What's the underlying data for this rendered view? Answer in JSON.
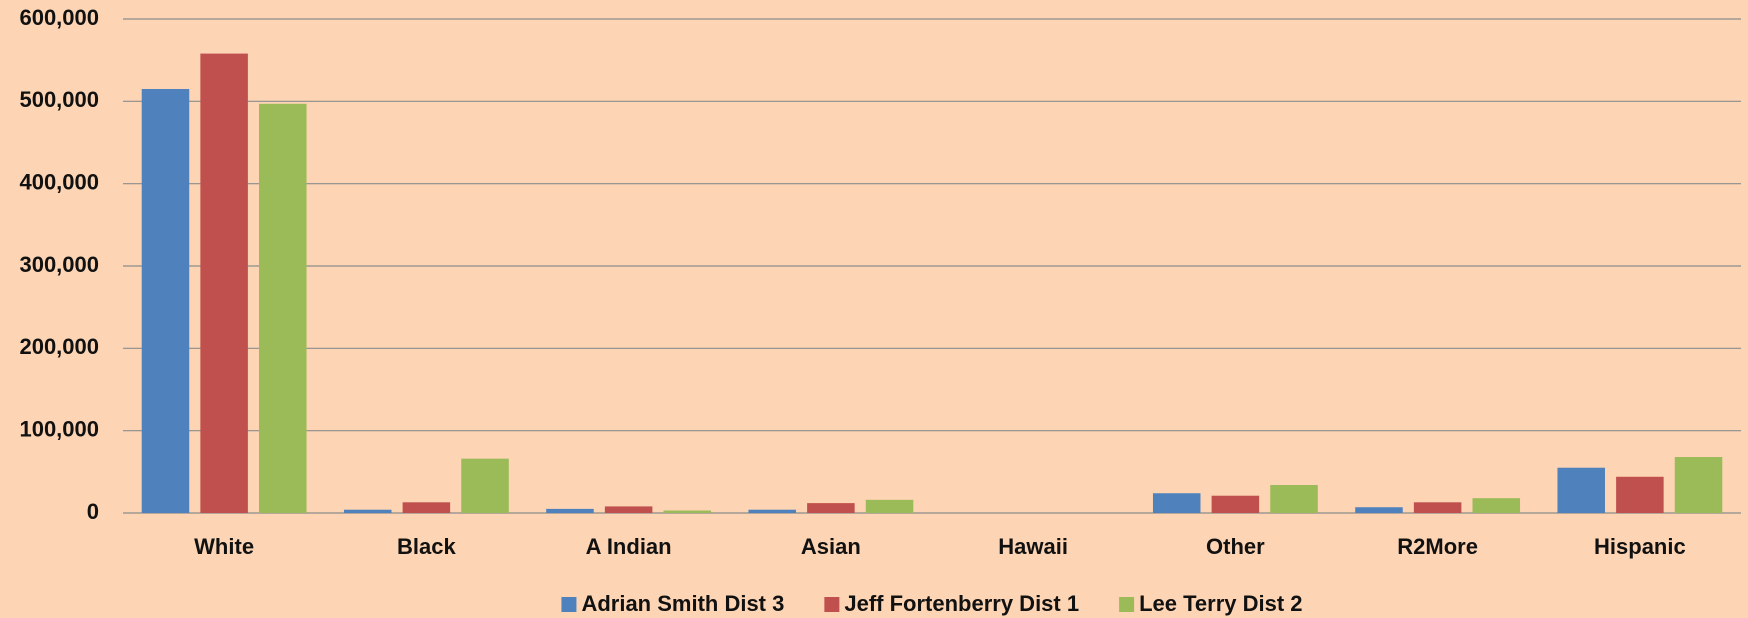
{
  "chart_data": {
    "type": "bar",
    "categories": [
      "White",
      "Black",
      "A  Indian",
      "Asian",
      "Hawaii",
      "Other",
      "R2More",
      "Hispanic"
    ],
    "series": [
      {
        "name": "Adrian Smith Dist 3",
        "color": "#4f81bd",
        "values": [
          515000,
          4000,
          5000,
          4000,
          0,
          24000,
          7000,
          55000
        ]
      },
      {
        "name": "Jeff Fortenberry Dist 1",
        "color": "#c0504d",
        "values": [
          558000,
          13000,
          8000,
          12000,
          0,
          21000,
          13000,
          44000
        ]
      },
      {
        "name": "Lee Terry Dist 2",
        "color": "#9bbb59",
        "values": [
          497000,
          66000,
          3000,
          16000,
          0,
          34000,
          18000,
          68000
        ]
      }
    ],
    "ylim": [
      0,
      600000
    ],
    "yticks": [
      0,
      {
        "value": 100000,
        "label": "100,000"
      },
      {
        "value": 200000,
        "label": "200,000"
      },
      {
        "value": 300000,
        "label": "300,000"
      },
      {
        "value": 400000,
        "label": "400,000"
      },
      {
        "value": 500000,
        "label": "500,000"
      },
      {
        "value": 600000,
        "label": "600,000"
      }
    ],
    "grid": true,
    "legend": "bottom"
  }
}
